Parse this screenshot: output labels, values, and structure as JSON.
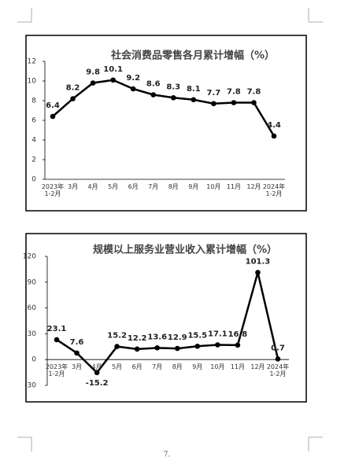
{
  "chart_data": [
    {
      "type": "line",
      "title": "社会消费品零售各月累计增幅（%）",
      "categories": [
        "2023年1-2月",
        "3月",
        "4月",
        "5月",
        "6月",
        "7月",
        "8月",
        "9月",
        "10月",
        "11月",
        "12月",
        "2024年1-2月"
      ],
      "values": [
        6.4,
        8.2,
        9.8,
        10.1,
        9.2,
        8.6,
        8.3,
        8.1,
        7.7,
        7.8,
        7.8,
        4.4
      ],
      "color": "#000000",
      "ylim": [
        0,
        12
      ],
      "yticks": [
        0,
        2,
        4,
        6,
        8,
        10,
        12
      ]
    },
    {
      "type": "line",
      "title": "规模以上服务业营业收入累计增幅（%）",
      "categories": [
        "2023年1-2月",
        "3月",
        "4月",
        "5月",
        "6月",
        "7月",
        "8月",
        "9月",
        "10月",
        "11月",
        "12月",
        "2024年1-2月"
      ],
      "values": [
        23.1,
        7.6,
        -15.2,
        15.2,
        12.2,
        13.6,
        12.9,
        15.5,
        17.1,
        16.8,
        101.3,
        0.7
      ],
      "color": "#000000",
      "ylim": [
        -30,
        120
      ],
      "yticks": [
        -30,
        0,
        30,
        60,
        90,
        120
      ]
    }
  ],
  "page_number": "7."
}
